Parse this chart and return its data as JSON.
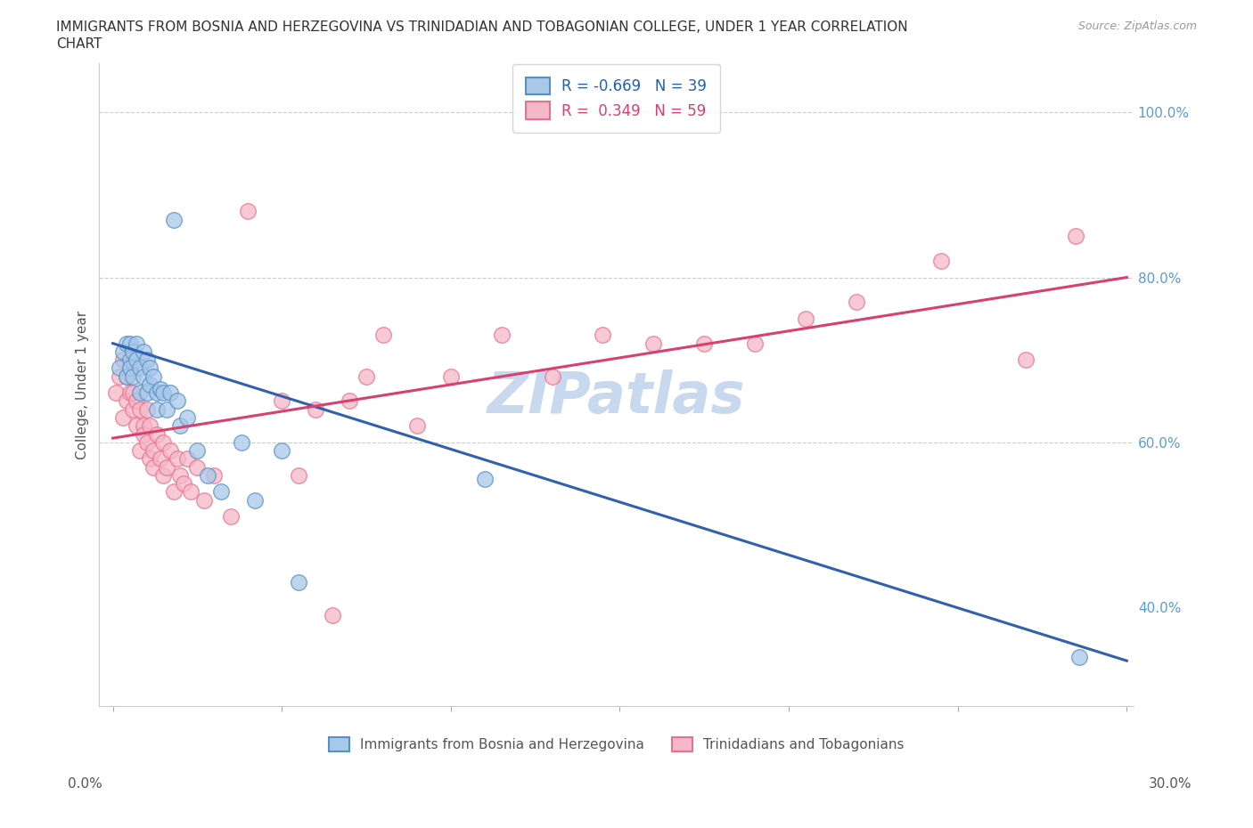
{
  "title_line1": "IMMIGRANTS FROM BOSNIA AND HERZEGOVINA VS TRINIDADIAN AND TOBAGONIAN COLLEGE, UNDER 1 YEAR CORRELATION",
  "title_line2": "CHART",
  "source_text": "Source: ZipAtlas.com",
  "ylabel": "College, Under 1 year",
  "xlim": [
    0.0,
    0.3
  ],
  "ylim": [
    0.28,
    1.06
  ],
  "blue_color": "#a8c8e8",
  "pink_color": "#f4b8c8",
  "blue_edge_color": "#5590c8",
  "pink_edge_color": "#e87090",
  "blue_line_color": "#3060b0",
  "pink_line_color": "#d84070",
  "legend_labels_bottom": [
    "Immigrants from Bosnia and Herzegovina",
    "Trinidadians and Tobagonians"
  ],
  "watermark_color": "#c8d8ee",
  "right_ytick_color": "#5b9bd5",
  "bosnia_x": [
    0.002,
    0.003,
    0.004,
    0.004,
    0.005,
    0.005,
    0.005,
    0.006,
    0.006,
    0.007,
    0.007,
    0.008,
    0.008,
    0.009,
    0.009,
    0.01,
    0.01,
    0.011,
    0.011,
    0.012,
    0.013,
    0.013,
    0.014,
    0.015,
    0.016,
    0.017,
    0.018,
    0.019,
    0.02,
    0.022,
    0.025,
    0.028,
    0.032,
    0.038,
    0.042,
    0.05,
    0.055,
    0.11,
    0.286
  ],
  "bosnia_y": [
    0.69,
    0.71,
    0.68,
    0.72,
    0.7,
    0.72,
    0.69,
    0.71,
    0.68,
    0.7,
    0.72,
    0.69,
    0.66,
    0.71,
    0.68,
    0.7,
    0.66,
    0.69,
    0.67,
    0.68,
    0.66,
    0.64,
    0.665,
    0.66,
    0.64,
    0.66,
    0.87,
    0.65,
    0.62,
    0.63,
    0.59,
    0.56,
    0.54,
    0.6,
    0.53,
    0.59,
    0.43,
    0.555,
    0.34
  ],
  "trini_x": [
    0.001,
    0.002,
    0.003,
    0.003,
    0.004,
    0.004,
    0.005,
    0.005,
    0.006,
    0.006,
    0.007,
    0.007,
    0.008,
    0.008,
    0.009,
    0.009,
    0.01,
    0.01,
    0.011,
    0.011,
    0.012,
    0.012,
    0.013,
    0.014,
    0.015,
    0.015,
    0.016,
    0.017,
    0.018,
    0.019,
    0.02,
    0.021,
    0.022,
    0.023,
    0.025,
    0.027,
    0.03,
    0.035,
    0.04,
    0.05,
    0.055,
    0.06,
    0.065,
    0.07,
    0.075,
    0.08,
    0.09,
    0.1,
    0.115,
    0.13,
    0.145,
    0.16,
    0.175,
    0.19,
    0.205,
    0.22,
    0.245,
    0.27,
    0.285
  ],
  "trini_y": [
    0.66,
    0.68,
    0.63,
    0.7,
    0.65,
    0.68,
    0.66,
    0.69,
    0.64,
    0.66,
    0.62,
    0.65,
    0.59,
    0.64,
    0.62,
    0.61,
    0.6,
    0.64,
    0.58,
    0.62,
    0.59,
    0.57,
    0.61,
    0.58,
    0.56,
    0.6,
    0.57,
    0.59,
    0.54,
    0.58,
    0.56,
    0.55,
    0.58,
    0.54,
    0.57,
    0.53,
    0.56,
    0.51,
    0.88,
    0.65,
    0.56,
    0.64,
    0.39,
    0.65,
    0.68,
    0.73,
    0.62,
    0.68,
    0.73,
    0.68,
    0.73,
    0.72,
    0.72,
    0.72,
    0.75,
    0.77,
    0.82,
    0.7,
    0.85
  ],
  "blue_trendline_x": [
    0.0,
    0.3
  ],
  "blue_trendline_y": [
    0.72,
    0.335
  ],
  "pink_trendline_x": [
    0.0,
    0.3
  ],
  "pink_trendline_y": [
    0.605,
    0.8
  ]
}
